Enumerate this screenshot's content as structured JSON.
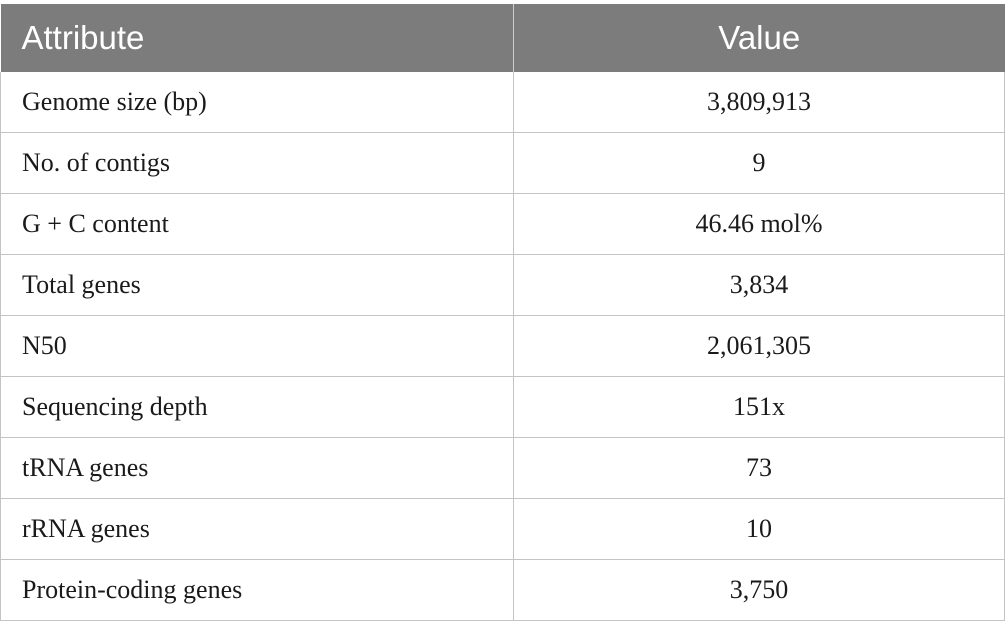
{
  "table": {
    "headers": {
      "attribute": "Attribute",
      "value": "Value"
    },
    "rows": [
      {
        "attribute": "Genome size (bp)",
        "value": "3,809,913"
      },
      {
        "attribute": "No. of contigs",
        "value": "9"
      },
      {
        "attribute": "G + C content",
        "value": "46.46 mol%"
      },
      {
        "attribute": "Total genes",
        "value": "3,834"
      },
      {
        "attribute": "N50",
        "value": "2,061,305"
      },
      {
        "attribute": "Sequencing depth",
        "value": "151x"
      },
      {
        "attribute": "tRNA genes",
        "value": "73"
      },
      {
        "attribute": "rRNA genes",
        "value": "10"
      },
      {
        "attribute": "Protein-coding genes",
        "value": "3,750"
      }
    ]
  },
  "colors": {
    "header_background": "#7b7c7b",
    "header_text": "#ffffff",
    "grid_line": "#c4c4c4"
  }
}
